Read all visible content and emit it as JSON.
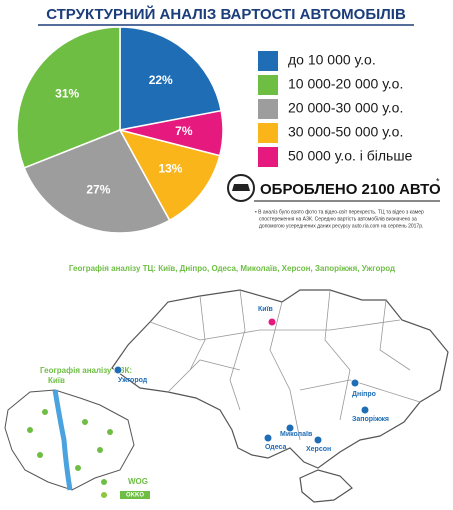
{
  "chart_data": {
    "type": "pie",
    "title": "СТРУКТУРНИЙ АНАЛІЗ ВАРТОСТІ АВТОМОБІЛІВ",
    "categories": [
      "до 10 000 у.о.",
      "10 000-20 000 у.о.",
      "20 000-30 000 у.о.",
      "30 000-50 000 у.о.",
      "50 000 у.о. і більше"
    ],
    "values": [
      22,
      31,
      27,
      13,
      7
    ],
    "value_labels": [
      "22%",
      "31%",
      "27%",
      "13%",
      "7%"
    ],
    "colors": [
      "#1f6db5",
      "#6ebe44",
      "#9d9d9d",
      "#f9b51a",
      "#e6197f"
    ],
    "counterclock": true
  },
  "processed": {
    "text": "ОБРОБЛЕНО 2100 АВТО",
    "mark": "*"
  },
  "note": [
    "• В аналіз було взято фото та відео-світ перехресть. ТЦ та відео з камер",
    "спостереження на АЗК. Середню вартість автомобілів визначено за",
    "допомогою усереднених даних ресурсу auto.ria.com на серпень 2017р."
  ],
  "map": {
    "title": "Географія аналізу ТЦ: Київ, Дніпро, Одеса, Миколаїв, Херсон, Запоріжжя, Ужгород",
    "cities": [
      "Київ",
      "Ужгород",
      "Дніпро",
      "Запоріжжя",
      "Миколаїв",
      "Одеса",
      "Херсон"
    ]
  },
  "azk": {
    "title": "Географія аналізу АЗК:",
    "city": "Київ",
    "brands": [
      "WOG",
      "OKKO"
    ]
  }
}
